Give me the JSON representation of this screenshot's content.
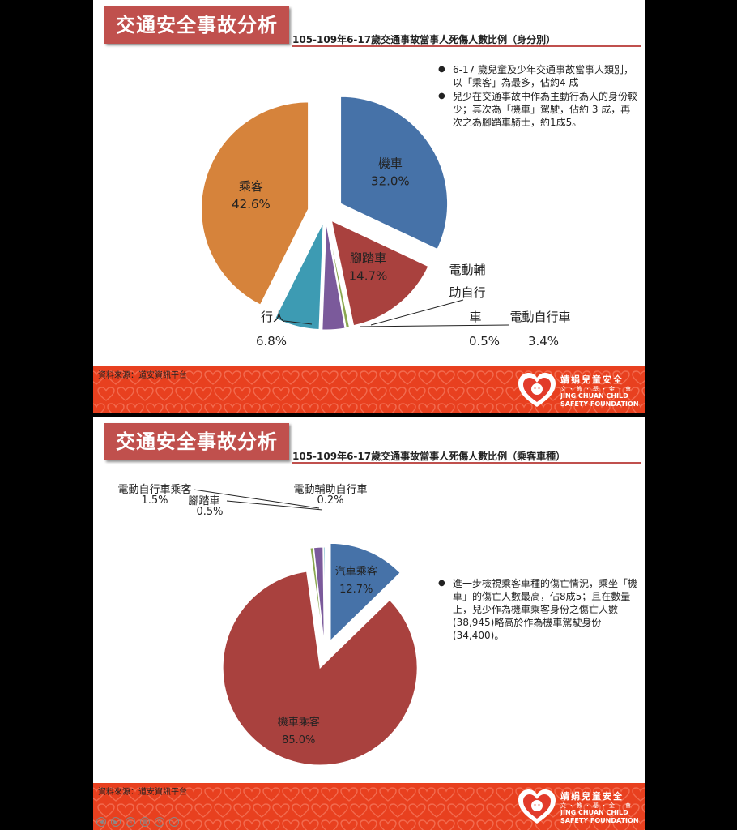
{
  "slides": [
    {
      "title": "交通安全事故分析",
      "subtitle": "105-109年6-17歲交通事故當事人死傷人數比例（身分別）",
      "bullets": [
        "6-17 歲兒童及少年交通事故當事人類別，以「乘客」為最多，佔約4 成",
        "兒少在交通事故中作為主動行為人的身份較少；其次為「機車」駕駛，佔約 3 成，再次之為腳踏車騎士，約1成5。"
      ],
      "source": "資料來源：道安資訊平台"
    },
    {
      "title": "交通安全事故分析",
      "subtitle": "105-109年6-17歲交通事故當事人死傷人數比例（乘客車種）",
      "bullets": [
        "進一步檢視乘客車種的傷亡情況，乘坐「機車」的傷亡人數最高，佔8成5；且在數量上，兒少作為機車乘客身份之傷亡人數(38,945)略高於作為機車駕駛身份(34,400)。"
      ],
      "source": "資料來源：道安資訊平台"
    }
  ],
  "logo": {
    "name_cn": "靖娟兒童安全",
    "name_cn2": "文・教・基・金・會",
    "name_en1": "JING CHUAN CHILD",
    "name_en2": "SAFETY FOUNDATION"
  },
  "chart_data": [
    {
      "type": "pie",
      "title": "105-109年6-17歲交通事故當事人死傷人數比例（身分別）",
      "slices": [
        {
          "name": "機車",
          "value": 32.0,
          "label": "32.0%",
          "color": "#4672a8",
          "label_lines": [
            "機車"
          ]
        },
        {
          "name": "腳踏車",
          "value": 14.7,
          "label": "14.7%",
          "color": "#a9413e",
          "label_lines": [
            "腳踏車"
          ]
        },
        {
          "name": "電動輔助自行車",
          "value": 0.5,
          "label": "0.5%",
          "color": "#8aa84f",
          "label_lines": [
            "電動輔",
            "助自行",
            "車"
          ]
        },
        {
          "name": "電動自行車",
          "value": 3.4,
          "label": "3.4%",
          "color": "#7b5a9b",
          "label_lines": [
            "電動自行車"
          ]
        },
        {
          "name": "行人",
          "value": 6.8,
          "label": "6.8%",
          "color": "#3d9bb3",
          "label_lines": [
            "行人"
          ]
        },
        {
          "name": "乘客",
          "value": 42.6,
          "label": "42.6%",
          "color": "#d6833b",
          "label_lines": [
            "乘客"
          ]
        }
      ]
    },
    {
      "type": "pie",
      "title": "105-109年6-17歲交通事故當事人死傷人數比例（乘客車種）",
      "slices": [
        {
          "name": "汽車乘客",
          "value": 12.7,
          "label": "12.7%",
          "color": "#4672a8",
          "label_lines": [
            "汽車乘客"
          ]
        },
        {
          "name": "機車乘客",
          "value": 85.0,
          "label": "85.0%",
          "color": "#a9413e",
          "label_lines": [
            "機車乘客"
          ]
        },
        {
          "name": "腳踏車",
          "value": 0.5,
          "label": "0.5%",
          "color": "#8aa84f",
          "label_lines": [
            "腳踏車"
          ]
        },
        {
          "name": "電動自行車乘客",
          "value": 1.5,
          "label": "1.5%",
          "color": "#7b5a9b",
          "label_lines": [
            "電動自行車乘客"
          ]
        },
        {
          "name": "電動輔助自行車",
          "value": 0.2,
          "label": "0.2%",
          "color": "#3d9bb3",
          "label_lines": [
            "電動輔助自行車"
          ]
        }
      ]
    }
  ]
}
